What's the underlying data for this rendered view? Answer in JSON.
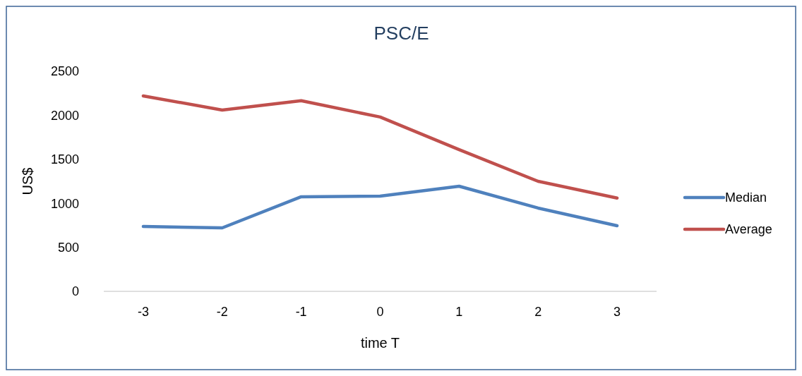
{
  "chart_data": {
    "type": "line",
    "title": "PSC/E",
    "xlabel": "time T",
    "ylabel": "US$",
    "categories": [
      "-3",
      "-2",
      "-1",
      "0",
      "1",
      "2",
      "3"
    ],
    "series": [
      {
        "name": "Median",
        "color": "#4f81bd",
        "values": [
          737,
          721,
          1074,
          1082,
          1194,
          946,
          745
        ]
      },
      {
        "name": "Average",
        "color": "#c0504d",
        "values": [
          2220,
          2060,
          2165,
          1980,
          1610,
          1250,
          1060
        ]
      }
    ],
    "ylim": [
      0,
      2500
    ],
    "yticks": [
      0,
      500,
      1000,
      1500,
      2000,
      2500
    ],
    "grid": false,
    "legend": "right",
    "marker": "none",
    "line_style": "solid"
  }
}
